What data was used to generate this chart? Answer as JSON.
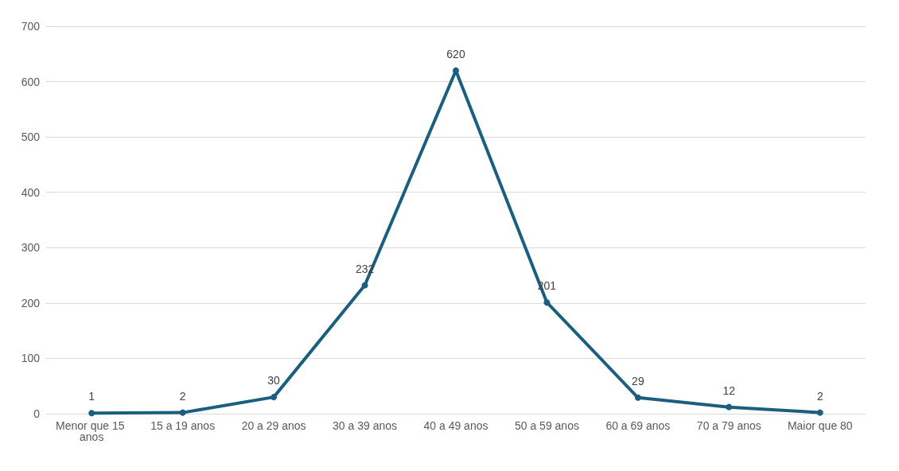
{
  "chart_data": {
    "type": "line",
    "categories": [
      "Menor que 15 anos",
      "15 a 19 anos",
      "20 a 29 anos",
      "30 a 39 anos",
      "40 a 49 anos",
      "50 a 59 anos",
      "60 a 69 anos",
      "70 a 79 anos",
      "Maior que 80"
    ],
    "series": [
      {
        "color": "#1b5e80",
        "values": [
          1,
          2,
          30,
          232,
          620,
          201,
          29,
          12,
          2
        ]
      }
    ],
    "ylim": [
      0,
      700
    ],
    "yticks": [
      0,
      100,
      200,
      300,
      400,
      500,
      600,
      700
    ],
    "grid": "y",
    "marker": "circle",
    "line_style": "solid",
    "data_labels": true
  }
}
